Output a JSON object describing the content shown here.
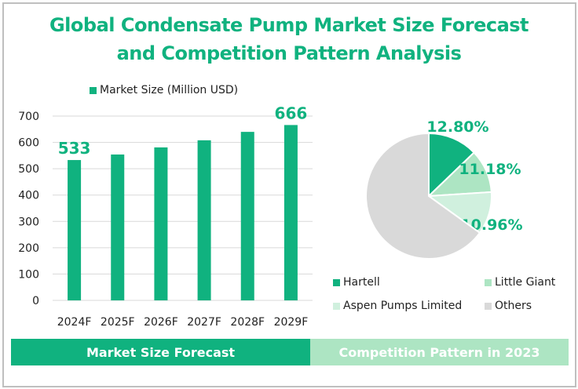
{
  "title_line1": "Global Condensate Pump Market Size Forecast",
  "title_line2": "and Competition Pattern Analysis",
  "colors": {
    "accent": "#10b27f",
    "light_green": "#ade5c3",
    "pale_green": "#d0f0de",
    "gray": "#d9d9d9",
    "gridline": "#d9d9d9"
  },
  "chart_data": [
    {
      "type": "bar",
      "title": "",
      "legend": "Market Size (Million USD)",
      "legend_position": "top",
      "categories": [
        "2024F",
        "2025F",
        "2026F",
        "2027F",
        "2028F",
        "2029F"
      ],
      "values": [
        533,
        554,
        581,
        608,
        640,
        666
      ],
      "data_labels": {
        "0": "533",
        "5": "666"
      },
      "yticks": [
        "0",
        "100",
        "200",
        "300",
        "400",
        "500",
        "600",
        "700"
      ],
      "ylim": [
        0,
        700
      ],
      "grid": true,
      "xlabel": "",
      "ylabel": ""
    },
    {
      "type": "pie",
      "title": "",
      "legend_position": "bottom",
      "slices": [
        {
          "name": "Hartell",
          "value": 12.8,
          "label": "12.80%",
          "color": "#10b27f"
        },
        {
          "name": "Little Giant",
          "value": 11.18,
          "label": "11.18%",
          "color": "#ade5c3"
        },
        {
          "name": "Aspen Pumps Limited",
          "value": 10.96,
          "label": "10.96%",
          "color": "#d0f0de"
        },
        {
          "name": "Others",
          "value": 65.06,
          "label": "",
          "color": "#d9d9d9"
        }
      ]
    }
  ],
  "footer": {
    "left": "Market Size Forecast",
    "right": "Competition Pattern in 2023"
  }
}
